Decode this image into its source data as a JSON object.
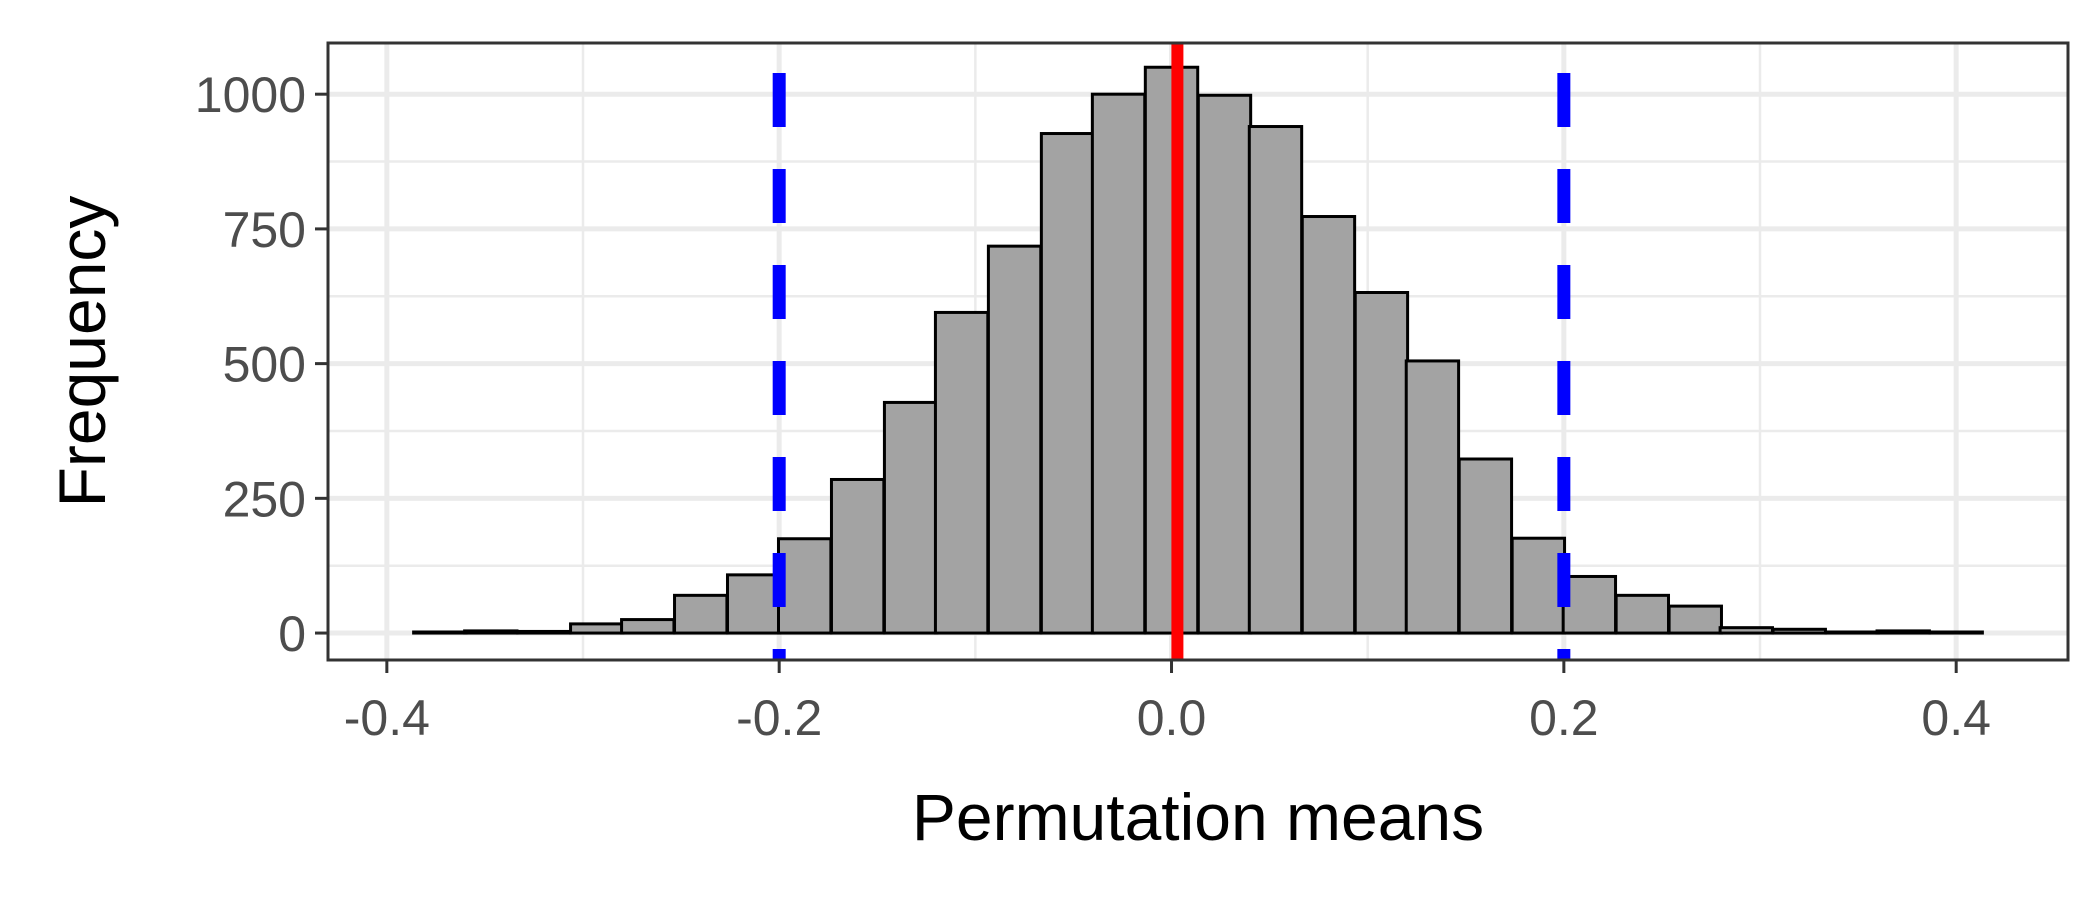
{
  "chart_data": {
    "type": "bar",
    "xlabel": "Permutation means",
    "ylabel": "Frequency",
    "bin_width": 0.0267,
    "bins": [
      {
        "x": -0.373,
        "count": 2
      },
      {
        "x": -0.347,
        "count": 4
      },
      {
        "x": -0.32,
        "count": 3
      },
      {
        "x": -0.293,
        "count": 17
      },
      {
        "x": -0.267,
        "count": 25
      },
      {
        "x": -0.24,
        "count": 70
      },
      {
        "x": -0.213,
        "count": 108
      },
      {
        "x": -0.187,
        "count": 175
      },
      {
        "x": -0.16,
        "count": 285
      },
      {
        "x": -0.133,
        "count": 428
      },
      {
        "x": -0.107,
        "count": 595
      },
      {
        "x": -0.08,
        "count": 718
      },
      {
        "x": -0.053,
        "count": 927
      },
      {
        "x": -0.027,
        "count": 1000
      },
      {
        "x": 0.0,
        "count": 1050
      },
      {
        "x": 0.027,
        "count": 998
      },
      {
        "x": 0.053,
        "count": 940
      },
      {
        "x": 0.08,
        "count": 773
      },
      {
        "x": 0.107,
        "count": 632
      },
      {
        "x": 0.133,
        "count": 505
      },
      {
        "x": 0.16,
        "count": 323
      },
      {
        "x": 0.187,
        "count": 176
      },
      {
        "x": 0.213,
        "count": 105
      },
      {
        "x": 0.24,
        "count": 70
      },
      {
        "x": 0.267,
        "count": 50
      },
      {
        "x": 0.293,
        "count": 10
      },
      {
        "x": 0.32,
        "count": 7
      },
      {
        "x": 0.347,
        "count": 2
      },
      {
        "x": 0.373,
        "count": 4
      },
      {
        "x": 0.4,
        "count": 2
      }
    ],
    "xlim": [
      -0.43,
      0.457
    ],
    "ylim": [
      -50,
      1095
    ],
    "x_ticks": [
      -0.4,
      -0.2,
      0.0,
      0.2,
      0.4
    ],
    "x_tick_labels": [
      "-0.4",
      "-0.2",
      "0.0",
      "0.2",
      "0.4"
    ],
    "y_ticks": [
      0,
      250,
      500,
      750,
      1000
    ],
    "y_tick_labels": [
      "0",
      "250",
      "500",
      "750",
      "1000"
    ],
    "reference_lines": [
      {
        "kind": "observed-mean",
        "x": 0.003,
        "color": "#ff0000",
        "style": "solid"
      },
      {
        "kind": "lower-critical",
        "x": -0.2,
        "color": "#0000ff",
        "style": "dashed"
      },
      {
        "kind": "upper-critical",
        "x": 0.2,
        "color": "#0000ff",
        "style": "dashed"
      }
    ],
    "bar_fill": "#a3a3a3",
    "bar_stroke": "#000000",
    "grid": true,
    "grid_color": "#ebebeb",
    "panel_border_color": "#333333"
  }
}
